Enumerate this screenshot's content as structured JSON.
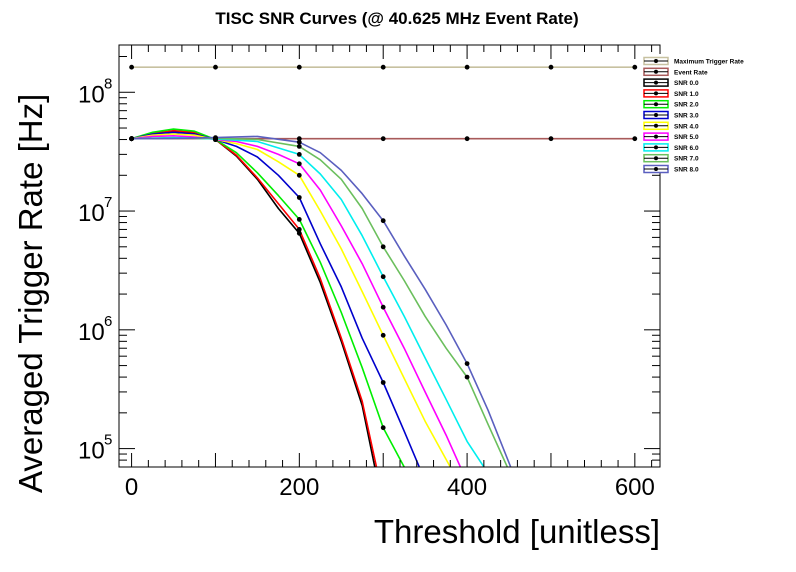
{
  "chart_data": {
    "type": "line",
    "title": "TISC SNR Curves (@ 40.625 MHz Event Rate)",
    "xlabel": "Threshold [unitless]",
    "ylabel": "Averaged Trigger Rate [Hz]",
    "xlim": [
      -15,
      630
    ],
    "ylim": [
      70000,
      250000000
    ],
    "yscale": "log",
    "x_ticks": [
      0,
      200,
      400,
      600
    ],
    "y_ticks": [
      {
        "base": "10",
        "exp": "5",
        "value": 100000
      },
      {
        "base": "10",
        "exp": "6",
        "value": 1000000
      },
      {
        "base": "10",
        "exp": "7",
        "value": 10000000
      },
      {
        "base": "10",
        "exp": "8",
        "value": 100000000
      }
    ],
    "grid": false,
    "legend_position": "right",
    "series": [
      {
        "name": "Maximum Trigger Rate",
        "color": "#c7c1a0",
        "x": [
          0,
          100,
          200,
          300,
          400,
          500,
          600
        ],
        "y": [
          162500000,
          162500000,
          162500000,
          162500000,
          162500000,
          162500000,
          162500000
        ],
        "markers": [
          0,
          100,
          200,
          300,
          400,
          500,
          600
        ]
      },
      {
        "name": "Event Rate",
        "color": "#a85a5a",
        "x": [
          0,
          100,
          200,
          300,
          400,
          500,
          600
        ],
        "y": [
          40625000,
          40625000,
          40625000,
          40625000,
          40625000,
          40625000,
          40625000
        ],
        "markers": [
          0,
          100,
          200,
          300,
          400,
          500,
          600
        ]
      },
      {
        "name": "SNR 0.0",
        "color": "#000000",
        "x": [
          0,
          25,
          50,
          75,
          100,
          125,
          150,
          175,
          200,
          225,
          250,
          275,
          290
        ],
        "y": [
          40625000,
          45000000,
          47000000,
          45500000,
          40000000,
          29000000,
          18500000,
          10500000,
          6500000,
          2500000,
          800000,
          230000,
          70000
        ],
        "markers": [
          0,
          100,
          200
        ]
      },
      {
        "name": "SNR 1.0",
        "color": "#ff0000",
        "x": [
          0,
          25,
          50,
          75,
          100,
          125,
          150,
          175,
          200,
          225,
          250,
          275,
          292
        ],
        "y": [
          40625000,
          45000000,
          47500000,
          46000000,
          40000000,
          29500000,
          19000000,
          11500000,
          7000000,
          2700000,
          850000,
          250000,
          70000
        ],
        "markers": [
          0,
          100,
          200
        ]
      },
      {
        "name": "SNR 2.0",
        "color": "#00ee00",
        "x": [
          0,
          25,
          50,
          75,
          100,
          125,
          150,
          175,
          200,
          225,
          250,
          275,
          300,
          325
        ],
        "y": [
          40625000,
          46000000,
          49000000,
          47000000,
          40000000,
          31000000,
          21000000,
          13500000,
          8500000,
          3700000,
          1400000,
          480000,
          150000,
          70000
        ],
        "markers": [
          0,
          100,
          200,
          300
        ]
      },
      {
        "name": "SNR 3.0",
        "color": "#0000cc",
        "x": [
          0,
          25,
          50,
          75,
          100,
          125,
          150,
          175,
          200,
          225,
          250,
          275,
          300,
          325,
          343
        ],
        "y": [
          40625000,
          44500000,
          46000000,
          44500000,
          40000000,
          35000000,
          28500000,
          20000000,
          13000000,
          5300000,
          2300000,
          850000,
          360000,
          140000,
          70000
        ],
        "markers": [
          0,
          100,
          200,
          300
        ]
      },
      {
        "name": "SNR 4.0",
        "color": "#ffff00",
        "x": [
          0,
          25,
          50,
          75,
          100,
          125,
          150,
          175,
          200,
          225,
          250,
          275,
          300,
          325,
          350,
          380
        ],
        "y": [
          40625000,
          43500000,
          44500000,
          43500000,
          40000000,
          37000000,
          33000000,
          26000000,
          20000000,
          10000000,
          4800000,
          2100000,
          900000,
          390000,
          170000,
          70000
        ],
        "markers": [
          0,
          100,
          200,
          300
        ]
      },
      {
        "name": "SNR 5.0",
        "color": "#ff00ff",
        "x": [
          0,
          25,
          50,
          75,
          100,
          125,
          150,
          175,
          200,
          225,
          250,
          275,
          300,
          325,
          350,
          375,
          392
        ],
        "y": [
          40625000,
          42500000,
          43000000,
          42000000,
          40000000,
          38500000,
          35000000,
          30000000,
          25000000,
          15000000,
          7500000,
          3600000,
          1550000,
          700000,
          300000,
          130000,
          70000
        ],
        "markers": [
          0,
          100,
          200,
          300
        ]
      },
      {
        "name": "SNR 6.0",
        "color": "#00eeee",
        "x": [
          0,
          50,
          100,
          150,
          200,
          225,
          250,
          275,
          300,
          325,
          350,
          375,
          400,
          420
        ],
        "y": [
          40625000,
          41500000,
          40500000,
          38500000,
          30000000,
          20500000,
          12500000,
          6200000,
          2800000,
          1300000,
          580000,
          260000,
          115000,
          70000
        ],
        "markers": [
          0,
          100,
          200,
          300
        ]
      },
      {
        "name": "SNR 7.0",
        "color": "#6bbf5d",
        "x": [
          0,
          50,
          100,
          150,
          200,
          225,
          250,
          275,
          300,
          325,
          350,
          375,
          400,
          425,
          448
        ],
        "y": [
          40625000,
          41000000,
          41000000,
          40000000,
          35000000,
          27000000,
          18500000,
          10500000,
          5000000,
          2600000,
          1300000,
          700000,
          400000,
          160000,
          70000
        ],
        "markers": [
          0,
          100,
          200,
          300,
          400
        ]
      },
      {
        "name": "SNR 8.0",
        "color": "#5a5fbf",
        "x": [
          0,
          50,
          100,
          150,
          200,
          225,
          250,
          275,
          300,
          325,
          350,
          375,
          400,
          425,
          452
        ],
        "y": [
          40625000,
          40900000,
          41500000,
          42500000,
          38000000,
          31000000,
          22000000,
          14000000,
          8300000,
          4200000,
          2200000,
          1100000,
          520000,
          210000,
          70000
        ],
        "markers": [
          0,
          100,
          200,
          300,
          400
        ]
      }
    ]
  }
}
